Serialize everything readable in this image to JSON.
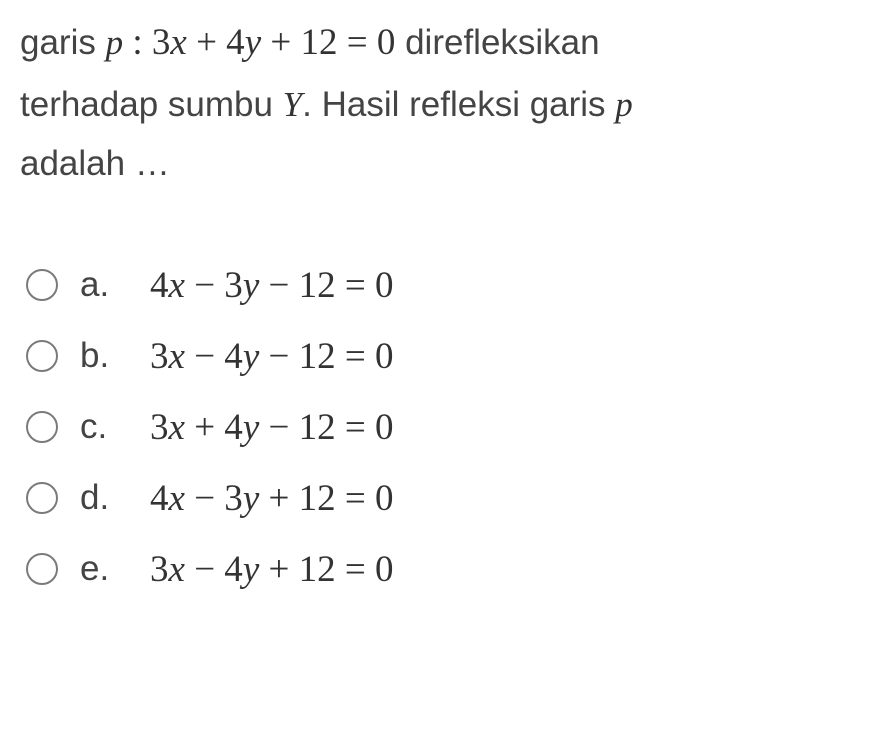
{
  "colors": {
    "background": "#ffffff",
    "text": "#444444",
    "math_text": "#333333",
    "radio_border": "#7a7a7a"
  },
  "typography": {
    "body_fontsize": 35,
    "math_fontsize": 37,
    "line_height": 1.7,
    "body_font": "Arial",
    "math_font": "Times New Roman"
  },
  "question": {
    "pre1": "garis ",
    "p_var": "p",
    "colon": " : ",
    "eq_lhs": "3",
    "eq_x": "x",
    "eq_plus1": " + 4",
    "eq_y": "y",
    "eq_plus2": " + 12 = 0",
    "post1": " direfleksikan",
    "line2_pre": "terhadap sumbu ",
    "Y_var": "Y",
    "line2_post": ". Hasil refleksi garis ",
    "p_var2": "p",
    "line3": "adalah …"
  },
  "options": [
    {
      "letter": "a.",
      "c1": "4",
      "x": "x",
      "op1": " − 3",
      "y": "y",
      "op2": " − 12 = 0"
    },
    {
      "letter": "b.",
      "c1": "3",
      "x": "x",
      "op1": " − 4",
      "y": "y",
      "op2": " − 12 = 0"
    },
    {
      "letter": "c.",
      "c1": "3",
      "x": "x",
      "op1": " + 4",
      "y": "y",
      "op2": " − 12 = 0"
    },
    {
      "letter": "d.",
      "c1": "4",
      "x": "x",
      "op1": " − 3",
      "y": "y",
      "op2": " + 12 = 0"
    },
    {
      "letter": "e.",
      "c1": "3",
      "x": "x",
      "op1": " − 4",
      "y": "y",
      "op2": " + 12 = 0"
    }
  ]
}
